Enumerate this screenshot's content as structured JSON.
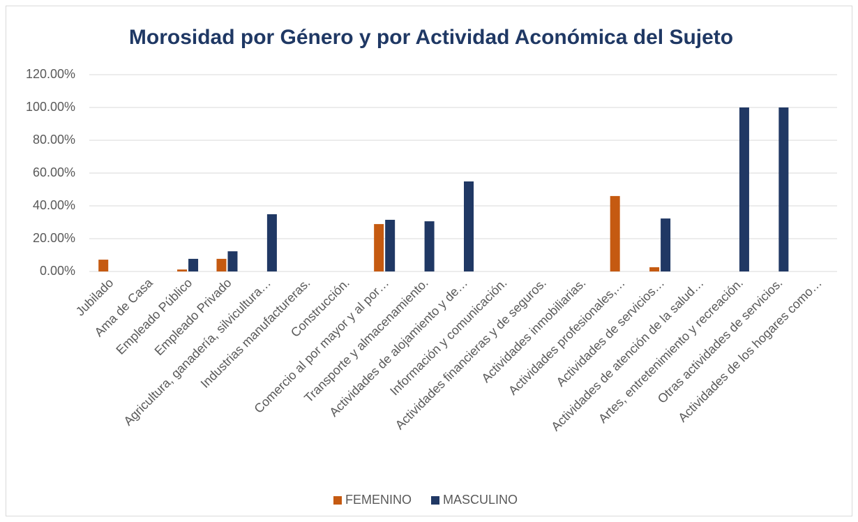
{
  "chart_data": {
    "type": "bar",
    "title": "Morosidad por Género y por Actividad Aconómica del Sujeto",
    "categories": [
      "Jubilado",
      "Ama de Casa",
      "Empleado Público",
      "Empleado Privado",
      "Agricultura, ganadería, silvicultura…",
      "Industrias manufactureras.",
      "Construcción.",
      "Comercio al por mayor y al por…",
      "Transporte y almacenamiento.",
      "Actividades de alojamiento y de…",
      "Información y comunicación.",
      "Actividades financieras y de seguros.",
      "Actividades inmobiliarias.",
      "Actividades profesionales,…",
      "Actividades de servicios…",
      "Actividades de atención de la salud…",
      "Artes, entretenimiento y recreación.",
      "Otras actividades de servicios.",
      "Actividades de los hogares como…"
    ],
    "series": [
      {
        "name": "FEMENINO",
        "color": "#c55a11",
        "values": [
          7.2,
          0,
          1.2,
          7.7,
          0,
          0,
          0,
          28.9,
          0,
          0,
          0,
          0,
          0,
          46,
          2.6,
          0,
          0,
          0,
          0
        ]
      },
      {
        "name": "MASCULINO",
        "color": "#203864",
        "values": [
          0,
          0,
          7.7,
          12.3,
          34.9,
          0,
          0,
          31.5,
          30.6,
          54.9,
          0,
          0,
          0,
          0,
          32.3,
          0,
          100,
          100,
          0
        ]
      }
    ],
    "ylim": [
      0,
      120
    ],
    "yticks": [
      {
        "value": 0,
        "label": "0.00%"
      },
      {
        "value": 20,
        "label": "20.00%"
      },
      {
        "value": 40,
        "label": "40.00%"
      },
      {
        "value": 60,
        "label": "60.00%"
      },
      {
        "value": 80,
        "label": "80.00%"
      },
      {
        "value": 100,
        "label": "100.00%"
      },
      {
        "value": 120,
        "label": "120.00%"
      }
    ],
    "grid": true,
    "legend": "bottom"
  }
}
